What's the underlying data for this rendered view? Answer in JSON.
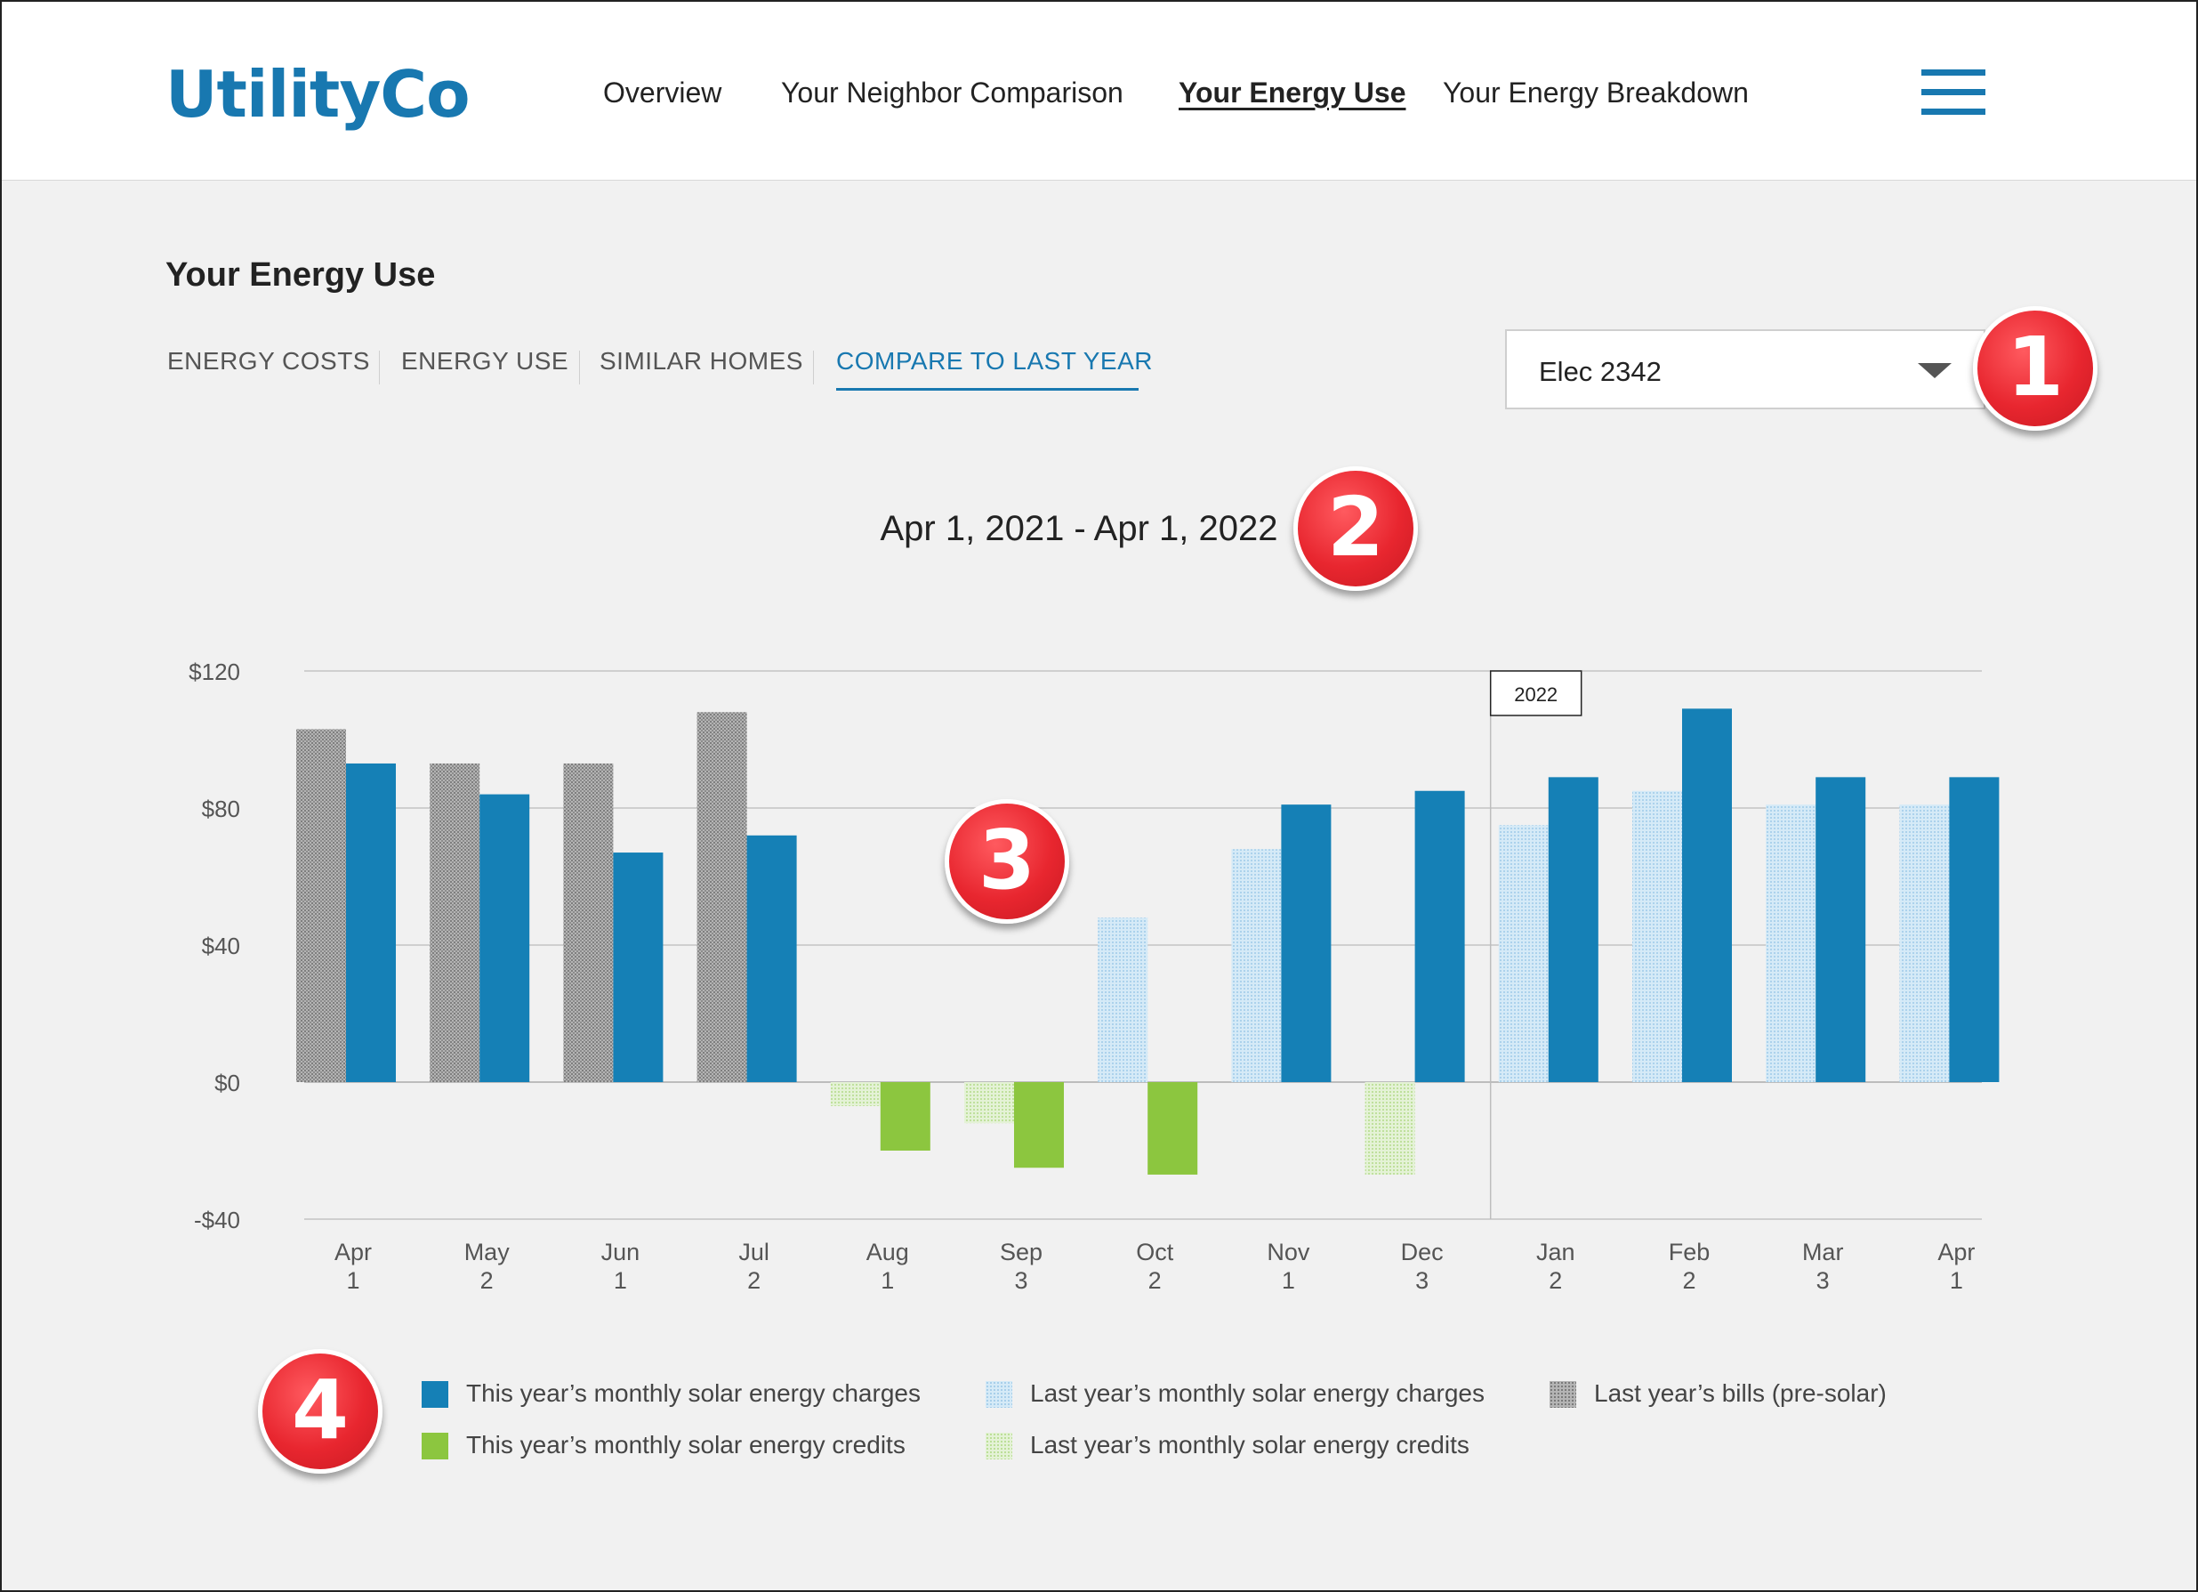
{
  "header": {
    "logo": "UtilityCo",
    "nav": [
      "Overview",
      "Your Neighbor Comparison",
      "Your Energy Use",
      "Your Energy Breakdown"
    ],
    "active_nav": "Your Energy Use"
  },
  "page": {
    "title": "Your Energy Use",
    "tabs": [
      "ENERGY COSTS",
      "ENERGY USE",
      "SIMILAR HOMES",
      "COMPARE TO LAST YEAR"
    ],
    "active_tab": "COMPARE TO LAST YEAR",
    "meter_select": {
      "value": "Elec 2342"
    },
    "date_range": "Apr 1, 2021 - Apr 1, 2022"
  },
  "badges": [
    "1",
    "2",
    "3",
    "4"
  ],
  "colors": {
    "this_year_charges": "#1580b6",
    "this_year_credits": "#8cc63f",
    "last_year_charges": "#c9e3f4",
    "last_year_credits": "#d8ecc6",
    "last_year_presolar": "#9a9a9a",
    "accent": "#1878b0"
  },
  "chart_data": {
    "type": "bar",
    "title": "Apr 1, 2021 - Apr 1, 2022",
    "ylim": [
      -40,
      120
    ],
    "yticks": [
      120,
      80,
      40,
      0,
      -40
    ],
    "ytick_labels": [
      "$120",
      "$80",
      "$40",
      "$0",
      "-$40"
    ],
    "categories": [
      "Apr",
      "May",
      "Jun",
      "Jul",
      "Aug",
      "Sep",
      "Oct",
      "Nov",
      "Dec",
      "Jan",
      "Feb",
      "Mar",
      "Apr"
    ],
    "category_sub": [
      "1",
      "2",
      "1",
      "2",
      "1",
      "3",
      "2",
      "1",
      "3",
      "2",
      "2",
      "3",
      "1"
    ],
    "year_marker": {
      "label": "2022",
      "before_category": "Jan"
    },
    "series": [
      {
        "name": "Last year’s bills (pre-solar)",
        "slot": "last",
        "style": "presolar",
        "values": [
          103,
          93,
          93,
          108,
          null,
          null,
          null,
          null,
          null,
          null,
          null,
          null,
          null
        ]
      },
      {
        "name": "Last year’s monthly solar energy charges",
        "slot": "last",
        "style": "lastcharge",
        "values": [
          null,
          null,
          null,
          null,
          null,
          null,
          48,
          68,
          null,
          75,
          85,
          81,
          81
        ]
      },
      {
        "name": "Last year’s monthly solar energy credits",
        "slot": "last",
        "style": "lastcredit",
        "values": [
          null,
          null,
          null,
          null,
          -7,
          -12,
          null,
          null,
          -27,
          null,
          null,
          null,
          null
        ]
      },
      {
        "name": "This year’s monthly solar energy charges",
        "slot": "this",
        "style": "thischarge",
        "values": [
          93,
          84,
          67,
          72,
          null,
          null,
          null,
          81,
          85,
          89,
          109,
          89,
          89
        ]
      },
      {
        "name": "This year’s monthly solar energy credits",
        "slot": "this",
        "style": "thiscredit",
        "values": [
          null,
          null,
          null,
          null,
          -20,
          -25,
          -27,
          null,
          null,
          null,
          null,
          null,
          null
        ]
      }
    ],
    "legend": [
      "This year’s monthly solar energy charges",
      "This year’s monthly solar energy credits",
      "Last year’s monthly solar energy charges",
      "Last year’s monthly solar energy credits",
      "Last year’s bills (pre-solar)"
    ]
  }
}
